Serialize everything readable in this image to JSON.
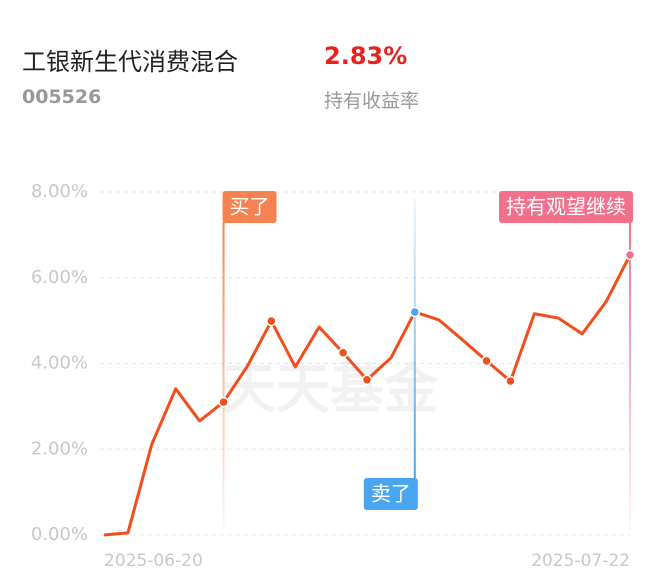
{
  "header": {
    "fund_name": "工银新生代消费混合",
    "return_value": "2.83%",
    "fund_code": "005526",
    "return_label": "持有收益率"
  },
  "chart_data": {
    "type": "line",
    "watermark": "天天基金",
    "categories": [
      "2025-06-20",
      null,
      null,
      null,
      null,
      null,
      null,
      null,
      null,
      null,
      null,
      null,
      null,
      null,
      null,
      null,
      null,
      null,
      null,
      null,
      null,
      null,
      "2025-07-22"
    ],
    "series": [
      {
        "color": "#f04e1c",
        "values": [
          0,
          0.05,
          2.12,
          3.41,
          2.66,
          3.1,
          3.94,
          4.99,
          3.92,
          4.85,
          4.25,
          3.62,
          4.13,
          5.2,
          5.02,
          4.55,
          4.06,
          3.59,
          5.16,
          5.06,
          4.69,
          5.44,
          6.53
        ]
      }
    ],
    "dots": [
      7,
      10,
      11,
      16,
      17
    ],
    "annotations": [
      {
        "text": "买了",
        "index": 5,
        "color": "#f5824f",
        "position": "top",
        "align": "left"
      },
      {
        "text": "卖了",
        "index": 13,
        "color": "#4aa5f0",
        "position": "bottom",
        "align": "right"
      },
      {
        "text": "持有观望继续",
        "index": 22,
        "color": "#f2708c",
        "position": "top",
        "align": "right"
      }
    ],
    "ylim": [
      0,
      8
    ],
    "yticks": [
      {
        "value": 0,
        "label": "0.00%"
      },
      {
        "value": 2,
        "label": "2.00%"
      },
      {
        "value": 4,
        "label": "4.00%"
      },
      {
        "value": 6,
        "label": "6.00%"
      },
      {
        "value": 8,
        "label": "8.00%"
      }
    ],
    "grid": true
  }
}
